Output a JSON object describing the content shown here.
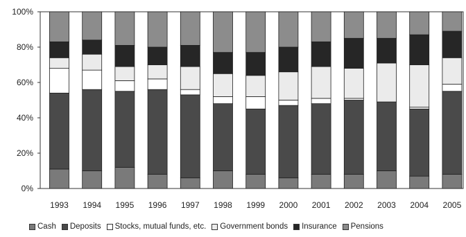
{
  "chart_data": {
    "type": "bar",
    "stacked": true,
    "categories": [
      "1993",
      "1994",
      "1995",
      "1996",
      "1997",
      "1998",
      "1999",
      "2000",
      "2001",
      "2002",
      "2003",
      "2004",
      "2005"
    ],
    "series": [
      {
        "name": "Cash",
        "color": "#7a7a7a",
        "values": [
          11,
          10,
          12,
          8,
          6,
          10,
          8,
          6,
          8,
          8,
          10,
          7,
          8
        ]
      },
      {
        "name": "Deposits",
        "color": "#4a4a4a",
        "values": [
          43,
          46,
          43,
          48,
          47,
          38,
          37,
          41,
          40,
          42,
          39,
          38,
          47
        ]
      },
      {
        "name": "Stocks, mutual funds, etc.",
        "color": "#ffffff",
        "values": [
          14,
          11,
          6,
          6,
          3,
          4,
          7,
          3,
          3,
          1,
          0,
          1,
          4
        ]
      },
      {
        "name": "Government bonds",
        "color": "#ebebeb",
        "values": [
          6,
          9,
          8,
          8,
          13,
          13,
          12,
          16,
          18,
          17,
          22,
          24,
          15
        ]
      },
      {
        "name": "Insurance",
        "color": "#262626",
        "values": [
          9,
          8,
          12,
          10,
          12,
          12,
          13,
          14,
          14,
          17,
          14,
          17,
          15
        ]
      },
      {
        "name": "Pensions",
        "color": "#8c8c8c",
        "values": [
          17,
          16,
          19,
          20,
          19,
          23,
          23,
          20,
          17,
          15,
          15,
          13,
          11
        ]
      }
    ],
    "ylim": [
      0,
      100
    ],
    "yticks": [
      0,
      20,
      40,
      60,
      80,
      100
    ],
    "ytick_labels": [
      "0%",
      "20%",
      "40%",
      "60%",
      "80%",
      "100%"
    ],
    "grid": false,
    "legend_position": "bottom"
  }
}
